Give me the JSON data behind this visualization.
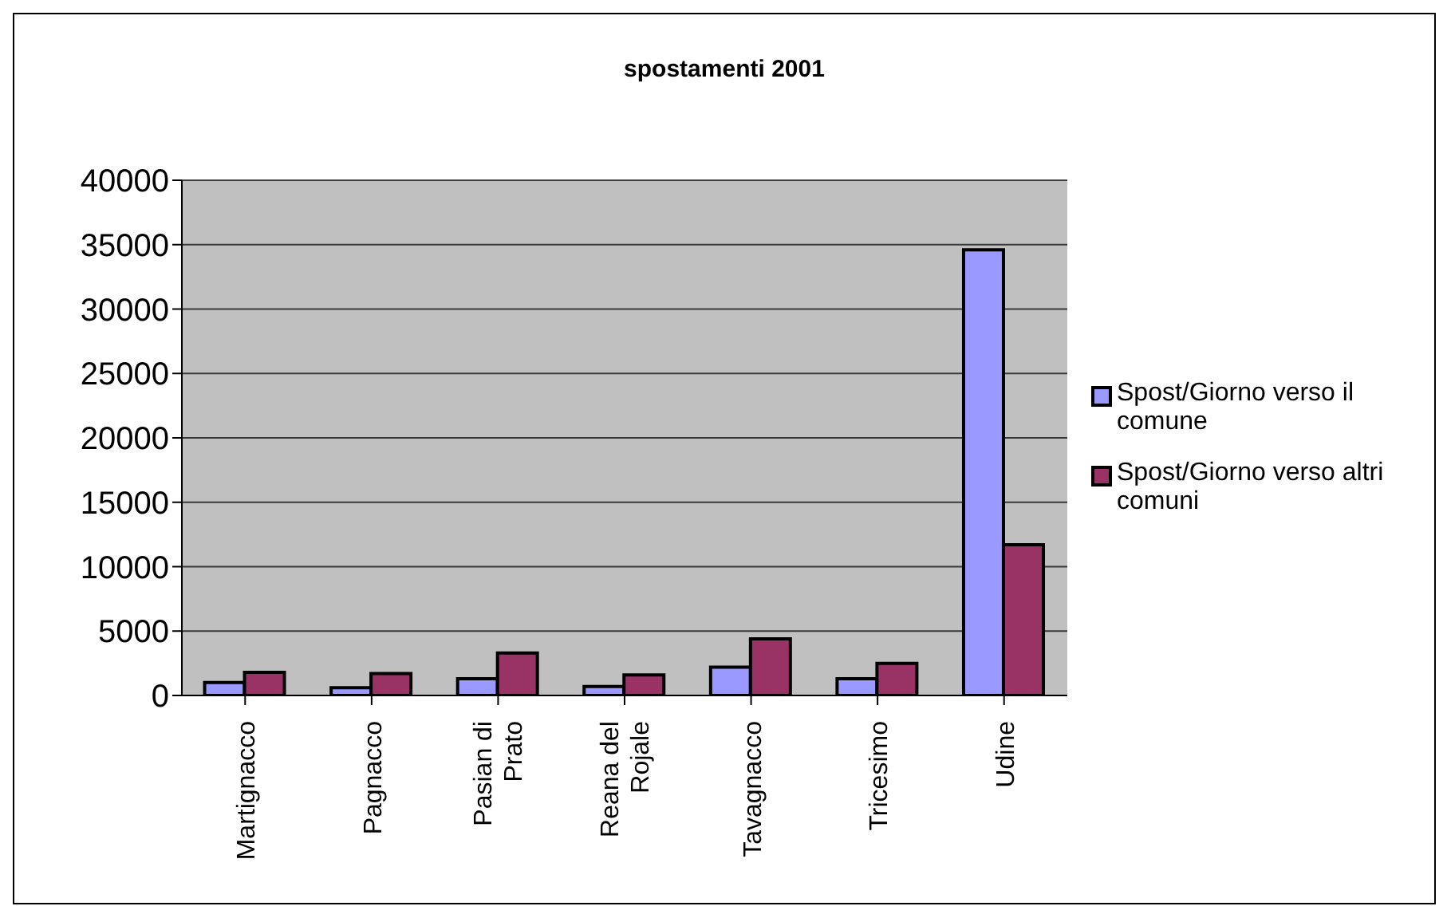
{
  "chart_data": {
    "type": "bar",
    "title": "spostamenti 2001",
    "categories": [
      "Martignacco",
      "Pagnacco",
      "Pasian di Prato",
      "Reana del Rojale",
      "Tavagnacco",
      "Tricesimo",
      "Udine"
    ],
    "series": [
      {
        "name": "Spost/Giorno verso il comune",
        "color": "#9999ff",
        "values": [
          1000,
          600,
          1300,
          700,
          2200,
          1300,
          34600
        ]
      },
      {
        "name": "Spost/Giorno verso altri comuni",
        "color": "#993366",
        "values": [
          1800,
          1700,
          3300,
          1600,
          4400,
          2500,
          11700
        ]
      }
    ],
    "ylim": [
      0,
      40000
    ],
    "yticks": [
      0,
      5000,
      10000,
      15000,
      20000,
      25000,
      30000,
      35000,
      40000
    ],
    "grid": "y",
    "legend": "right"
  }
}
